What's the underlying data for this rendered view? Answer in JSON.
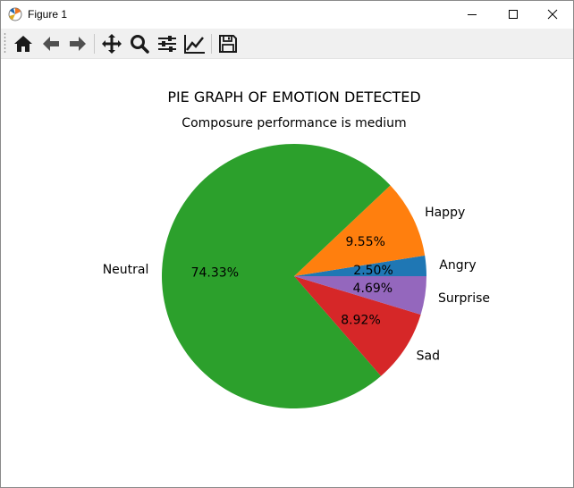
{
  "window": {
    "title": "Figure 1",
    "controls": {
      "minimize": "minimize-icon",
      "maximize": "maximize-icon",
      "close": "close-icon"
    }
  },
  "toolbar": {
    "tools": [
      "home-icon",
      "back-arrow-icon",
      "forward-arrow-icon",
      "pan-move-icon",
      "zoom-magnifier-icon",
      "configure-subplots-icon",
      "edit-axis-curve-icon",
      "save-floppy-icon"
    ]
  },
  "chart_data": {
    "type": "pie",
    "title": "PIE GRAPH OF EMOTION DETECTED",
    "subtitle": "Composure performance is medium",
    "start_angle_deg": 0,
    "direction": "counterclockwise",
    "slices": [
      {
        "label": "Angry",
        "value": 2.5,
        "pct_label": "2.50%",
        "color": "#1f77b4"
      },
      {
        "label": "Happy",
        "value": 9.55,
        "pct_label": "9.55%",
        "color": "#ff7f0e"
      },
      {
        "label": "Neutral",
        "value": 74.33,
        "pct_label": "74.33%",
        "color": "#2ca02c"
      },
      {
        "label": "Sad",
        "value": 8.92,
        "pct_label": "8.92%",
        "color": "#d62728"
      },
      {
        "label": "Surprise",
        "value": 4.69,
        "pct_label": "4.69%",
        "color": "#9467bd"
      }
    ]
  }
}
